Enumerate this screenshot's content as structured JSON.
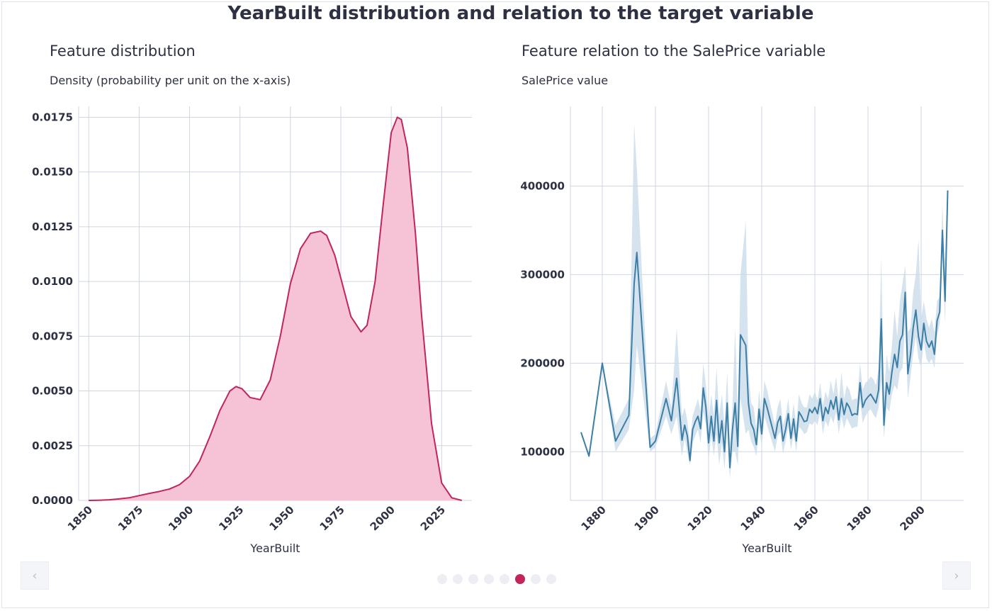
{
  "title": "YearBuilt distribution and relation to the target variable",
  "colors": {
    "density_line": "#c2255c",
    "density_fill": "#f5c2d6",
    "line": "#3d7ea6",
    "band": "#c9dce8",
    "grid": "#cfd6e2",
    "active_dot": "#c2255c"
  },
  "nav": {
    "prev_icon": "chevron-left-icon",
    "next_icon": "chevron-right-icon",
    "prev_glyph": "‹",
    "next_glyph": "›"
  },
  "pagination": {
    "count": 8,
    "active_index": 5
  },
  "chart_data": [
    {
      "type": "area",
      "title": "Feature distribution",
      "ylabel": "Density (probability per unit on the x-axis)",
      "xlabel": "YearBuilt",
      "xlim": [
        1845,
        2040
      ],
      "ylim": [
        0,
        0.018
      ],
      "xticks": [
        "1850",
        "1875",
        "1900",
        "1925",
        "1950",
        "1975",
        "2000",
        "2025"
      ],
      "yticks": [
        "0.0000",
        "0.0025",
        "0.0050",
        "0.0075",
        "0.0100",
        "0.0125",
        "0.0150",
        "0.0175"
      ],
      "grid": true,
      "x": [
        1850,
        1855,
        1860,
        1865,
        1870,
        1875,
        1880,
        1885,
        1890,
        1895,
        1900,
        1905,
        1910,
        1915,
        1920,
        1923,
        1926,
        1930,
        1935,
        1940,
        1945,
        1950,
        1955,
        1960,
        1965,
        1968,
        1972,
        1976,
        1980,
        1985,
        1988,
        1992,
        1996,
        2000,
        2003,
        2005,
        2008,
        2012,
        2015,
        2020,
        2025,
        2030,
        2035
      ],
      "values": [
        0.0,
        1e-05,
        3e-05,
        7e-05,
        0.00012,
        0.00022,
        0.00032,
        0.00041,
        0.00052,
        0.00072,
        0.0011,
        0.0018,
        0.0029,
        0.0041,
        0.005,
        0.0052,
        0.0051,
        0.0047,
        0.0046,
        0.0055,
        0.0075,
        0.0099,
        0.0115,
        0.0122,
        0.0123,
        0.0121,
        0.0112,
        0.0098,
        0.0084,
        0.0077,
        0.008,
        0.01,
        0.0135,
        0.0168,
        0.0175,
        0.0174,
        0.0161,
        0.0122,
        0.0085,
        0.0035,
        0.0008,
        0.00012,
        0.0
      ]
    },
    {
      "type": "line",
      "title": "Feature relation to the SalePrice variable",
      "ylabel": "SalePrice value",
      "xlabel": "YearBuilt",
      "xlim": [
        1868,
        2016
      ],
      "ylim": [
        45000,
        490000
      ],
      "xticks": [
        "1880",
        "1900",
        "1920",
        "1940",
        "1960",
        "1980",
        "2000"
      ],
      "yticks": [
        "100000",
        "200000",
        "300000",
        "400000"
      ],
      "grid": true,
      "series": [
        {
          "x": [
            1872,
            1875,
            1880,
            1885,
            1890,
            1892,
            1893,
            1898,
            1900,
            1904,
            1906,
            1908,
            1910,
            1911,
            1912,
            1913,
            1914,
            1915,
            1916,
            1917,
            1918,
            1919,
            1920,
            1921,
            1922,
            1923,
            1924,
            1925,
            1926,
            1927,
            1928,
            1929,
            1930,
            1931,
            1932,
            1934,
            1935,
            1936,
            1937,
            1938,
            1939,
            1940,
            1941,
            1942,
            1945,
            1946,
            1947,
            1948,
            1949,
            1950,
            1951,
            1952,
            1953,
            1954,
            1955,
            1956,
            1957,
            1958,
            1959,
            1960,
            1961,
            1962,
            1963,
            1964,
            1965,
            1966,
            1967,
            1968,
            1969,
            1970,
            1971,
            1972,
            1973,
            1974,
            1975,
            1976,
            1977,
            1978,
            1979,
            1980,
            1981,
            1982,
            1983,
            1984,
            1985,
            1986,
            1987,
            1988,
            1989,
            1990,
            1991,
            1992,
            1993,
            1994,
            1995,
            1996,
            1997,
            1998,
            1999,
            2000,
            2001,
            2002,
            2003,
            2004,
            2005,
            2006,
            2007,
            2008,
            2009,
            2010
          ],
          "values": [
            122000,
            95000,
            200000,
            112000,
            141000,
            290000,
            325000,
            105000,
            112000,
            160000,
            135000,
            183000,
            113000,
            130000,
            118000,
            90000,
            125000,
            134000,
            140000,
            126000,
            172000,
            150000,
            110000,
            140000,
            112000,
            158000,
            110000,
            135000,
            100000,
            155000,
            82000,
            125000,
            155000,
            106000,
            232000,
            220000,
            155000,
            132000,
            125000,
            108000,
            148000,
            120000,
            160000,
            150000,
            115000,
            133000,
            140000,
            112000,
            125000,
            143000,
            115000,
            137000,
            112000,
            145000,
            140000,
            134000,
            135000,
            148000,
            144000,
            150000,
            143000,
            160000,
            135000,
            150000,
            143000,
            158000,
            148000,
            162000,
            136000,
            160000,
            142000,
            155000,
            150000,
            141000,
            143000,
            142000,
            178000,
            150000,
            158000,
            162000,
            165000,
            160000,
            155000,
            170000,
            250000,
            130000,
            178000,
            165000,
            190000,
            210000,
            195000,
            225000,
            232000,
            280000,
            188000,
            210000,
            240000,
            260000,
            230000,
            215000,
            245000,
            225000,
            218000,
            225000,
            210000,
            248000,
            258000,
            350000,
            270000,
            395000
          ],
          "ci_upper": [
            122000,
            95000,
            200000,
            130000,
            160000,
            470000,
            420000,
            115000,
            120000,
            180000,
            150000,
            240000,
            140000,
            150000,
            135000,
            110000,
            140000,
            150000,
            160000,
            145000,
            200000,
            175000,
            135000,
            165000,
            140000,
            195000,
            140000,
            165000,
            130000,
            190000,
            110000,
            150000,
            240000,
            140000,
            300000,
            360000,
            190000,
            155000,
            150000,
            125000,
            170000,
            140000,
            180000,
            170000,
            130000,
            150000,
            160000,
            130000,
            140000,
            160000,
            130000,
            155000,
            130000,
            165000,
            155000,
            150000,
            150000,
            165000,
            160000,
            168000,
            158000,
            178000,
            152000,
            168000,
            160000,
            180000,
            165000,
            185000,
            155000,
            190000,
            160000,
            175000,
            170000,
            158000,
            160000,
            160000,
            200000,
            170000,
            178000,
            180000,
            185000,
            182000,
            175000,
            195000,
            320000,
            160000,
            210000,
            190000,
            220000,
            260000,
            230000,
            270000,
            290000,
            310000,
            235000,
            240000,
            280000,
            300000,
            340000,
            250000,
            270000,
            250000,
            240000,
            250000,
            235000,
            270000,
            275000,
            380000,
            300000,
            395000
          ],
          "ci_lower": [
            122000,
            95000,
            200000,
            100000,
            125000,
            170000,
            220000,
            100000,
            105000,
            140000,
            120000,
            140000,
            95000,
            115000,
            100000,
            85000,
            110000,
            118000,
            125000,
            110000,
            145000,
            130000,
            90000,
            118000,
            95000,
            120000,
            85000,
            110000,
            80000,
            125000,
            70000,
            100000,
            100000,
            85000,
            160000,
            120000,
            125000,
            112000,
            105000,
            95000,
            128000,
            105000,
            140000,
            130000,
            100000,
            118000,
            122000,
            98000,
            112000,
            128000,
            102000,
            120000,
            100000,
            128000,
            125000,
            120000,
            122000,
            132000,
            130000,
            135000,
            130000,
            145000,
            120000,
            135000,
            128000,
            140000,
            132000,
            145000,
            120000,
            140000,
            126000,
            138000,
            132000,
            126000,
            128000,
            128000,
            160000,
            132000,
            140000,
            145000,
            148000,
            142000,
            138000,
            150000,
            180000,
            115000,
            150000,
            145000,
            165000,
            175000,
            170000,
            190000,
            195000,
            245000,
            160000,
            185000,
            210000,
            230000,
            205000,
            195000,
            225000,
            205000,
            200000,
            205000,
            195000,
            230000,
            245000,
            320000,
            245000,
            395000
          ]
        }
      ]
    }
  ]
}
